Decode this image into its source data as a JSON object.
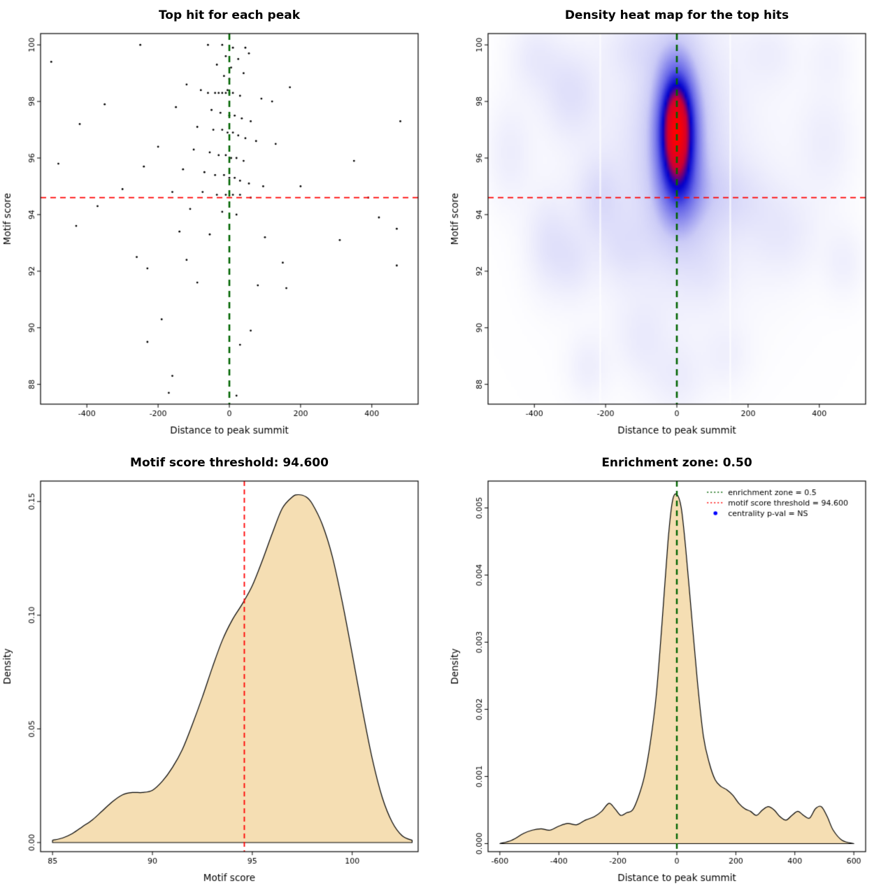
{
  "colors": {
    "threshold_red": "#ff0000",
    "zone_green": "#006400",
    "density_fill": "#f5deb3",
    "centrality_point_blue": "#0000ff",
    "scatter_point": "#000000",
    "axis": "#000000",
    "background": "#ffffff"
  },
  "chart_data": [
    {
      "type": "scatter",
      "title": "Top hit for each peak",
      "xlabel": "Distance to peak summit",
      "ylabel": "Motif score",
      "xlim": [
        -530,
        530
      ],
      "ylim": [
        87.3,
        100.4
      ],
      "xticks": {
        "values": [
          -400,
          -200,
          0,
          200,
          400
        ],
        "labels": [
          "-400",
          "-200",
          "0",
          "200",
          "400"
        ]
      },
      "yticks": {
        "values": [
          88,
          90,
          92,
          94,
          96,
          98,
          100
        ],
        "labels": [
          "88",
          "90",
          "92",
          "94",
          "96",
          "98",
          "100"
        ]
      },
      "vlines": [
        {
          "x": 0,
          "color": "#006400",
          "width": 2.6,
          "dash": [
            9,
            7
          ]
        }
      ],
      "hlines": [
        {
          "y": 94.6,
          "color": "#ff0000",
          "width": 1.8,
          "dash": [
            8,
            6
          ]
        }
      ],
      "points": [
        [
          -500,
          99.4
        ],
        [
          -250,
          100.0
        ],
        [
          -60,
          100.0
        ],
        [
          -20,
          100.0
        ],
        [
          10,
          99.9
        ],
        [
          45,
          99.9
        ],
        [
          55,
          99.7
        ],
        [
          -10,
          99.6
        ],
        [
          25,
          99.5
        ],
        [
          -35,
          99.3
        ],
        [
          5,
          99.2
        ],
        [
          40,
          99.0
        ],
        [
          -15,
          98.9
        ],
        [
          0,
          98.8
        ],
        [
          -120,
          98.6
        ],
        [
          170,
          98.5
        ],
        [
          -5,
          98.4
        ],
        [
          -80,
          98.4
        ],
        [
          -60,
          98.3
        ],
        [
          -40,
          98.3
        ],
        [
          -30,
          98.3
        ],
        [
          -20,
          98.3
        ],
        [
          -10,
          98.3
        ],
        [
          0,
          98.3
        ],
        [
          10,
          98.3
        ],
        [
          30,
          98.2
        ],
        [
          90,
          98.1
        ],
        [
          120,
          98.0
        ],
        [
          -350,
          97.9
        ],
        [
          -150,
          97.8
        ],
        [
          -50,
          97.7
        ],
        [
          -25,
          97.6
        ],
        [
          0,
          97.5
        ],
        [
          15,
          97.5
        ],
        [
          35,
          97.4
        ],
        [
          60,
          97.3
        ],
        [
          480,
          97.3
        ],
        [
          -420,
          97.2
        ],
        [
          -90,
          97.1
        ],
        [
          -45,
          97.0
        ],
        [
          -20,
          97.0
        ],
        [
          -5,
          96.9
        ],
        [
          10,
          96.9
        ],
        [
          25,
          96.8
        ],
        [
          45,
          96.7
        ],
        [
          75,
          96.6
        ],
        [
          130,
          96.5
        ],
        [
          -200,
          96.4
        ],
        [
          -100,
          96.3
        ],
        [
          -55,
          96.2
        ],
        [
          -30,
          96.1
        ],
        [
          -10,
          96.1
        ],
        [
          5,
          96.0
        ],
        [
          20,
          96.0
        ],
        [
          40,
          95.9
        ],
        [
          350,
          95.9
        ],
        [
          -480,
          95.8
        ],
        [
          -240,
          95.7
        ],
        [
          -130,
          95.6
        ],
        [
          -70,
          95.5
        ],
        [
          -40,
          95.4
        ],
        [
          -15,
          95.4
        ],
        [
          0,
          95.3
        ],
        [
          15,
          95.3
        ],
        [
          30,
          95.2
        ],
        [
          55,
          95.1
        ],
        [
          95,
          95.0
        ],
        [
          200,
          95.0
        ],
        [
          -300,
          94.9
        ],
        [
          -160,
          94.8
        ],
        [
          -75,
          94.8
        ],
        [
          -35,
          94.7
        ],
        [
          -10,
          94.7
        ],
        [
          10,
          94.7
        ],
        [
          30,
          94.7
        ],
        [
          60,
          94.6
        ],
        [
          390,
          94.6
        ],
        [
          -370,
          94.3
        ],
        [
          -110,
          94.2
        ],
        [
          -20,
          94.1
        ],
        [
          20,
          94.0
        ],
        [
          420,
          93.9
        ],
        [
          -430,
          93.6
        ],
        [
          470,
          93.5
        ],
        [
          -140,
          93.4
        ],
        [
          -55,
          93.3
        ],
        [
          100,
          93.2
        ],
        [
          310,
          93.1
        ],
        [
          -260,
          92.5
        ],
        [
          -120,
          92.4
        ],
        [
          150,
          92.3
        ],
        [
          470,
          92.2
        ],
        [
          -230,
          92.1
        ],
        [
          -90,
          91.6
        ],
        [
          80,
          91.5
        ],
        [
          160,
          91.4
        ],
        [
          -190,
          90.3
        ],
        [
          60,
          89.9
        ],
        [
          -230,
          89.5
        ],
        [
          30,
          89.4
        ],
        [
          -160,
          88.3
        ],
        [
          -170,
          87.7
        ],
        [
          20,
          87.6
        ]
      ]
    },
    {
      "type": "heatmap",
      "title": "Density heat map for the top hits",
      "xlabel": "Distance to peak summit",
      "ylabel": "Motif score",
      "xlim": [
        -530,
        530
      ],
      "ylim": [
        87.3,
        100.4
      ],
      "xticks": {
        "values": [
          -400,
          -200,
          0,
          200,
          400
        ],
        "labels": [
          "-400",
          "-200",
          "0",
          "200",
          "400"
        ]
      },
      "yticks": {
        "values": [
          88,
          90,
          92,
          94,
          96,
          98,
          100
        ],
        "labels": [
          "88",
          "90",
          "92",
          "94",
          "96",
          "98",
          "100"
        ]
      },
      "vlines": [
        {
          "x": 0,
          "color": "#006400",
          "width": 2.6,
          "dash": [
            9,
            7
          ]
        }
      ],
      "hlines": [
        {
          "y": 94.6,
          "color": "#ff0000",
          "width": 1.8,
          "dash": [
            8,
            6
          ]
        }
      ],
      "blobs": [
        [
          0,
          97.1,
          40,
          1.7,
          1.0
        ],
        [
          0,
          96.7,
          85,
          2.8,
          0.38
        ],
        [
          0,
          95.5,
          230,
          4.2,
          0.16
        ],
        [
          10,
          94.4,
          55,
          1.2,
          0.18
        ],
        [
          -300,
          98.3,
          55,
          1.1,
          0.22
        ],
        [
          -400,
          99.6,
          50,
          0.9,
          0.16
        ],
        [
          -470,
          96.2,
          45,
          1.3,
          0.14
        ],
        [
          -360,
          93.0,
          45,
          1.2,
          0.2
        ],
        [
          -220,
          94.6,
          45,
          1.0,
          0.22
        ],
        [
          -290,
          92.3,
          40,
          0.9,
          0.14
        ],
        [
          -150,
          92.8,
          50,
          0.9,
          0.14
        ],
        [
          -250,
          88.6,
          40,
          0.8,
          0.13
        ],
        [
          -100,
          89.6,
          50,
          1.0,
          0.12
        ],
        [
          0,
          88.2,
          55,
          0.9,
          0.13
        ],
        [
          140,
          89.0,
          45,
          0.8,
          0.1
        ],
        [
          150,
          94.6,
          80,
          0.9,
          0.16
        ],
        [
          300,
          93.3,
          70,
          1.1,
          0.14
        ],
        [
          420,
          96.6,
          55,
          1.4,
          0.13
        ],
        [
          470,
          92.3,
          40,
          0.9,
          0.12
        ],
        [
          260,
          99.7,
          55,
          0.8,
          0.11
        ],
        [
          -120,
          99.9,
          60,
          0.7,
          0.12
        ],
        [
          430,
          99.6,
          45,
          0.8,
          0.09
        ],
        [
          90,
          92.0,
          50,
          0.9,
          0.08
        ]
      ],
      "colormap": [
        [
          0.0,
          [
            255,
            255,
            255
          ]
        ],
        [
          0.3,
          [
            204,
            204,
            247
          ]
        ],
        [
          0.55,
          [
            102,
            102,
            232
          ]
        ],
        [
          0.72,
          [
            0,
            0,
            205
          ]
        ],
        [
          0.85,
          [
            204,
            0,
            51
          ]
        ],
        [
          1.0,
          [
            255,
            0,
            0
          ]
        ]
      ],
      "white_gaps_x": [
        -215,
        150
      ]
    },
    {
      "type": "area",
      "title": "Motif score threshold: 94.600",
      "xlabel": "Motif score",
      "ylabel": "Density",
      "xlim": [
        84.4,
        103.3
      ],
      "ylim": [
        -0.004,
        0.159
      ],
      "xticks": {
        "values": [
          85,
          90,
          95,
          100
        ],
        "labels": [
          "85",
          "90",
          "95",
          "100"
        ]
      },
      "yticks": {
        "values": [
          0,
          0.05,
          0.1,
          0.15
        ],
        "labels": [
          "0.00",
          "0.05",
          "0.10",
          "0.15"
        ]
      },
      "vlines": [
        {
          "x": 94.6,
          "color": "#ff0000",
          "width": 1.8,
          "dash": [
            7,
            5
          ]
        }
      ],
      "fill": "#f5deb3",
      "x": [
        85,
        85.5,
        86,
        86.5,
        87,
        87.5,
        88,
        88.5,
        89,
        89.5,
        90,
        90.5,
        91,
        91.5,
        92,
        92.5,
        93,
        93.5,
        94,
        94.5,
        95,
        95.5,
        96,
        96.5,
        97,
        97.3,
        97.7,
        98,
        98.5,
        99,
        99.5,
        100,
        100.5,
        101,
        101.5,
        102,
        102.5,
        103
      ],
      "y": [
        0.001,
        0.002,
        0.004,
        0.007,
        0.01,
        0.014,
        0.018,
        0.021,
        0.022,
        0.022,
        0.023,
        0.027,
        0.033,
        0.041,
        0.052,
        0.064,
        0.077,
        0.089,
        0.098,
        0.105,
        0.113,
        0.124,
        0.136,
        0.147,
        0.152,
        0.153,
        0.152,
        0.149,
        0.14,
        0.126,
        0.106,
        0.083,
        0.059,
        0.037,
        0.02,
        0.009,
        0.003,
        0.001
      ]
    },
    {
      "type": "area",
      "title": "Enrichment zone: 0.50",
      "xlabel": "Distance to peak summit",
      "ylabel": "Density",
      "xlim": [
        -640,
        640
      ],
      "ylim": [
        -0.00012,
        0.0054
      ],
      "xticks": {
        "values": [
          -600,
          -400,
          -200,
          0,
          200,
          400,
          600
        ],
        "labels": [
          "-600",
          "-400",
          "-200",
          "0",
          "200",
          "400",
          "600"
        ]
      },
      "yticks": {
        "values": [
          0,
          0.001,
          0.002,
          0.003,
          0.004,
          0.005
        ],
        "labels": [
          "0.000",
          "0.001",
          "0.002",
          "0.003",
          "0.004",
          "0.005"
        ]
      },
      "vlines": [
        {
          "x": 0,
          "color": "#006400",
          "width": 2.4,
          "dash": [
            8,
            6
          ]
        }
      ],
      "fill": "#f5deb3",
      "x": [
        -600,
        -560,
        -520,
        -490,
        -460,
        -430,
        -400,
        -370,
        -340,
        -310,
        -280,
        -255,
        -230,
        -210,
        -190,
        -170,
        -150,
        -130,
        -110,
        -90,
        -70,
        -50,
        -30,
        -15,
        0,
        15,
        30,
        50,
        70,
        90,
        110,
        130,
        150,
        170,
        190,
        210,
        230,
        250,
        270,
        290,
        310,
        330,
        350,
        370,
        390,
        410,
        430,
        450,
        470,
        490,
        510,
        530,
        560,
        600
      ],
      "y": [
        0,
        5e-05,
        0.00015,
        0.0002,
        0.00022,
        0.0002,
        0.00026,
        0.0003,
        0.00028,
        0.00035,
        0.0004,
        0.00048,
        0.0006,
        0.00052,
        0.00042,
        0.00046,
        0.0005,
        0.0007,
        0.001,
        0.0015,
        0.0022,
        0.0033,
        0.0045,
        0.0051,
        0.0052,
        0.005,
        0.0044,
        0.0034,
        0.0024,
        0.0016,
        0.0012,
        0.00095,
        0.00085,
        0.0008,
        0.00072,
        0.0006,
        0.00052,
        0.00048,
        0.00042,
        0.0005,
        0.00055,
        0.0005,
        0.0004,
        0.00035,
        0.00042,
        0.00048,
        0.00042,
        0.00038,
        0.00052,
        0.00055,
        0.0004,
        0.0002,
        5e-05,
        0
      ],
      "legend": {
        "items": [
          {
            "type": "line",
            "color": "#006400",
            "label": "enrichment zone = 0.5"
          },
          {
            "type": "line",
            "color": "#ff0000",
            "label": "motif score threshold = 94.600"
          },
          {
            "type": "point",
            "color": "#0000ff",
            "label": "centrality p-val = NS"
          }
        ]
      }
    }
  ]
}
